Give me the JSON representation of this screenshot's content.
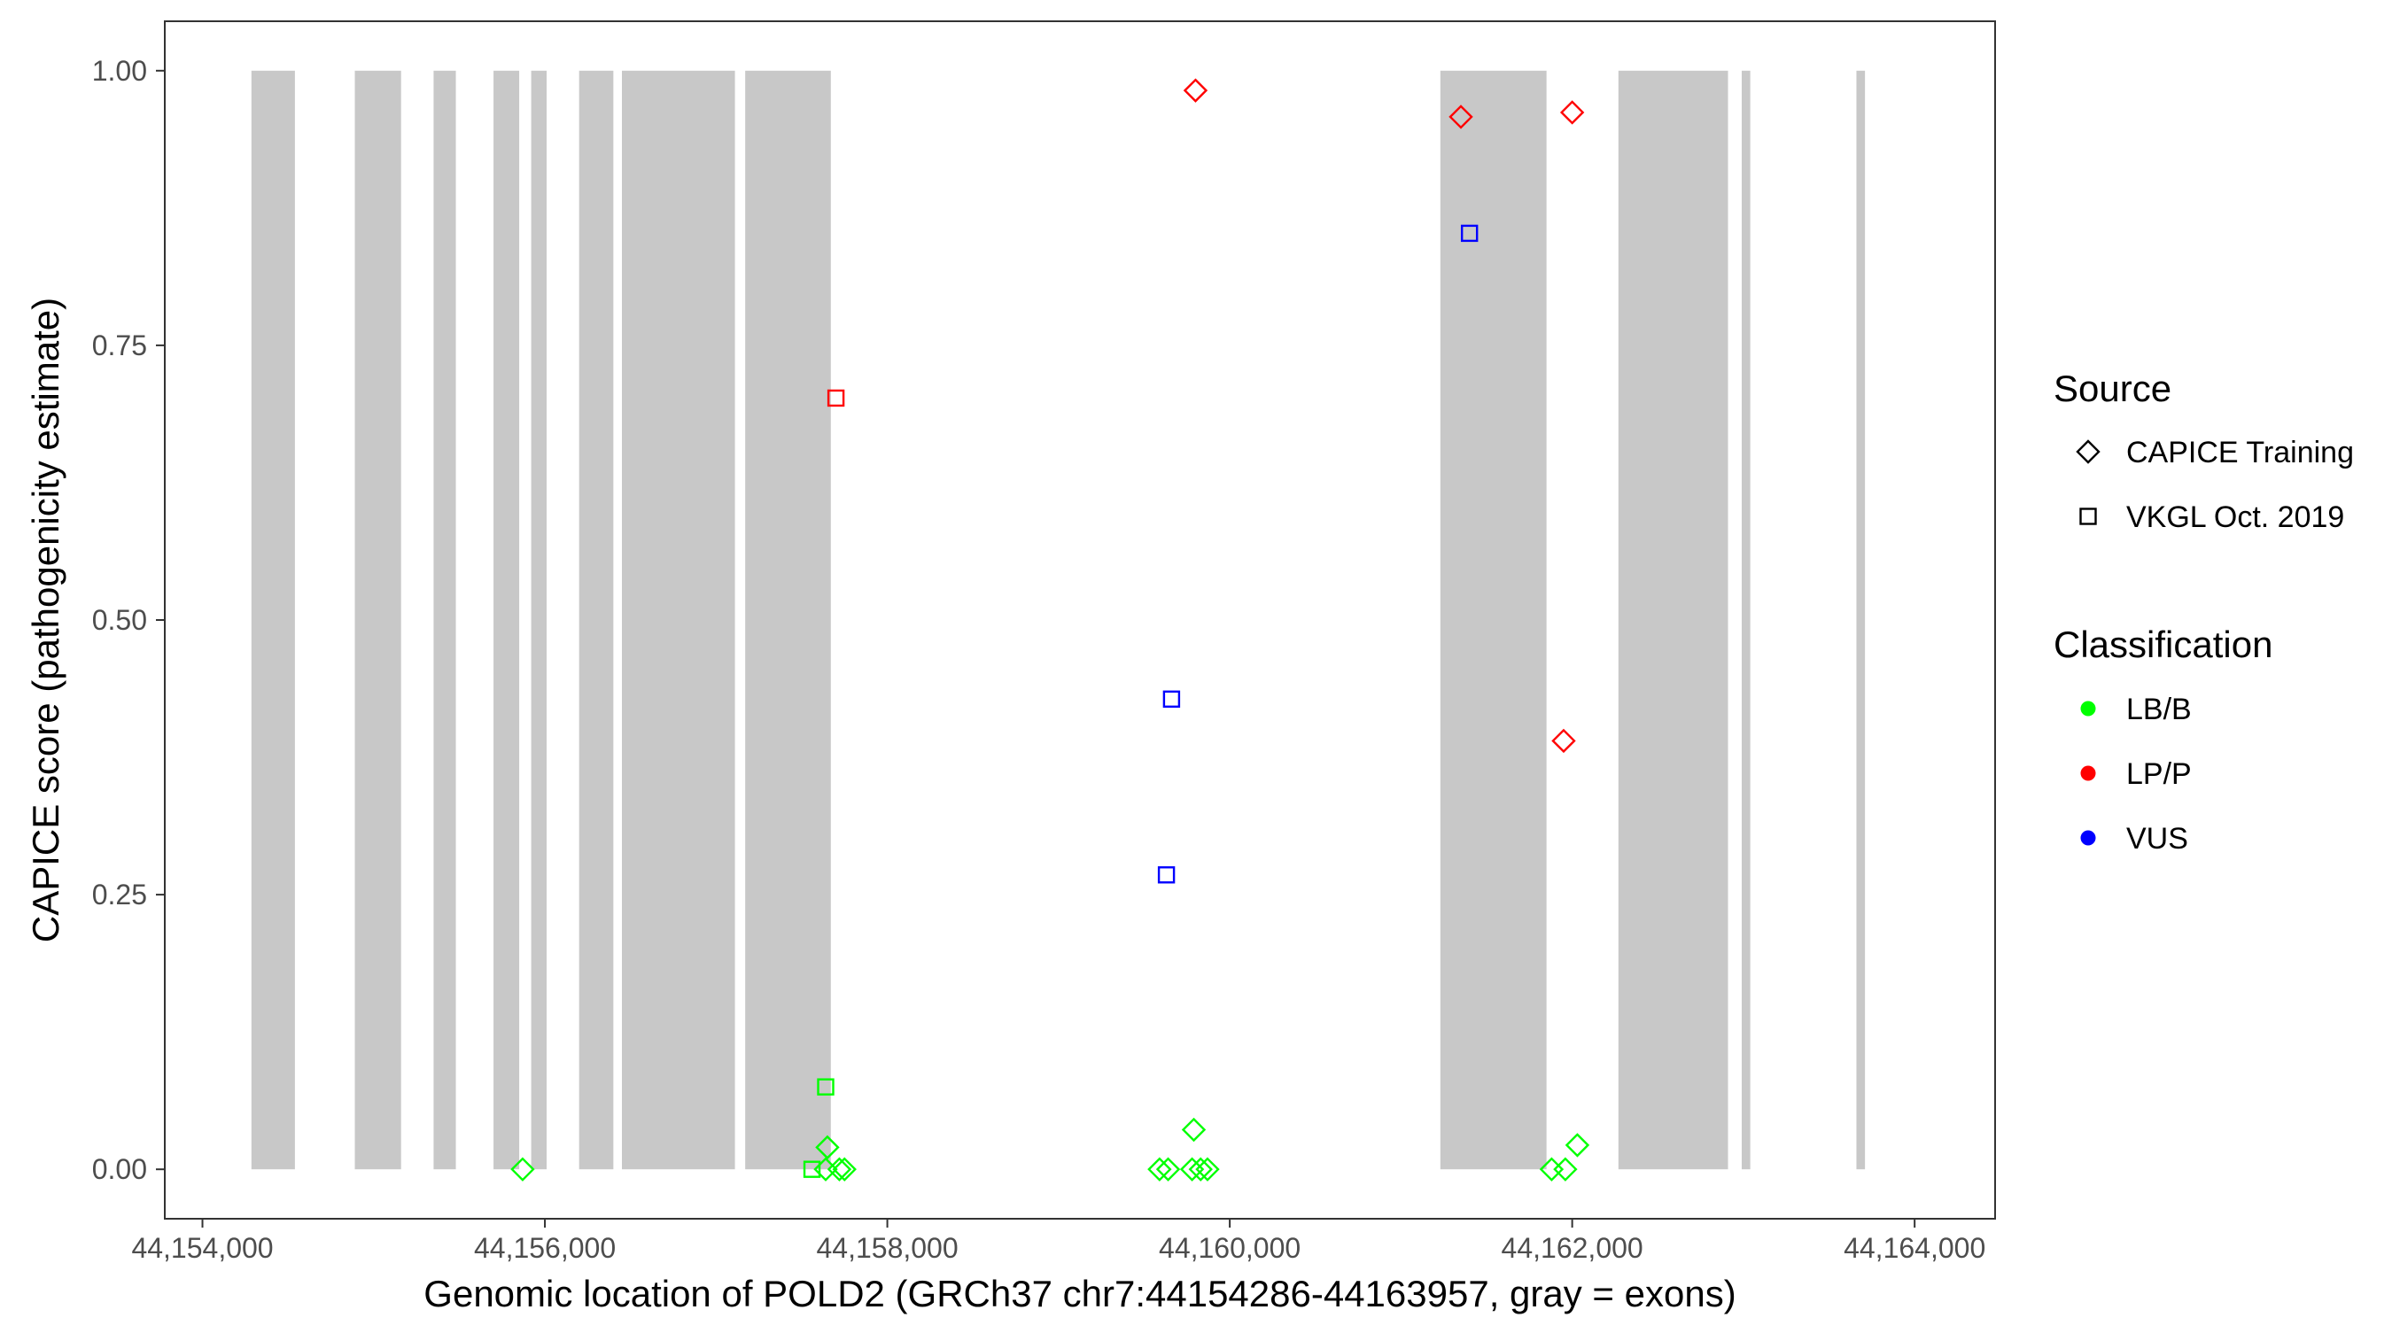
{
  "chart_data": {
    "type": "scatter",
    "xlabel": "Genomic location of POLD2 (GRCh37 chr7:44154286-44163957, gray = exons)",
    "ylabel": "CAPICE score (pathogenicity estimate)",
    "xlim": [
      44153780,
      44164470
    ],
    "ylim": [
      -0.045,
      1.045
    ],
    "x_ticks": [
      44154000,
      44156000,
      44158000,
      44160000,
      44162000,
      44164000
    ],
    "x_tick_labels": [
      "44,154,000",
      "44,156,000",
      "44,158,000",
      "44,160,000",
      "44,162,000",
      "44,164,000"
    ],
    "y_ticks": [
      0,
      0.25,
      0.5,
      0.75,
      1.0
    ],
    "y_tick_labels": [
      "0.00",
      "0.25",
      "0.50",
      "0.75",
      "1.00"
    ],
    "grid": false,
    "exons": [
      [
        44154286,
        44154540
      ],
      [
        44154890,
        44155160
      ],
      [
        44155350,
        44155480
      ],
      [
        44155700,
        44155850
      ],
      [
        44155920,
        44156010
      ],
      [
        44156200,
        44156400
      ],
      [
        44156450,
        44157110
      ],
      [
        44157170,
        44157670
      ],
      [
        44161230,
        44161850
      ],
      [
        44162270,
        44162910
      ],
      [
        44162990,
        44163040
      ],
      [
        44163660,
        44163710
      ]
    ],
    "legend_position": "right",
    "legends": [
      {
        "title": "Source",
        "items": [
          {
            "label": "CAPICE Training",
            "shape": "diamond"
          },
          {
            "label": "VKGL Oct. 2019",
            "shape": "square"
          }
        ]
      },
      {
        "title": "Classification",
        "items": [
          {
            "label": "LB/B",
            "color": "#00ff00"
          },
          {
            "label": "LP/P",
            "color": "#ff0000"
          },
          {
            "label": "VUS",
            "color": "#0000ff"
          }
        ]
      }
    ],
    "points": [
      {
        "x": 44159800,
        "y": 0.982,
        "source": "CAPICE Training",
        "classification": "LP/P"
      },
      {
        "x": 44161350,
        "y": 0.958,
        "source": "CAPICE Training",
        "classification": "LP/P"
      },
      {
        "x": 44162000,
        "y": 0.962,
        "source": "CAPICE Training",
        "classification": "LP/P"
      },
      {
        "x": 44161950,
        "y": 0.39,
        "source": "CAPICE Training",
        "classification": "LP/P"
      },
      {
        "x": 44157700,
        "y": 0.702,
        "source": "VKGL Oct. 2019",
        "classification": "LP/P"
      },
      {
        "x": 44161400,
        "y": 0.852,
        "source": "VKGL Oct. 2019",
        "classification": "VUS"
      },
      {
        "x": 44159660,
        "y": 0.428,
        "source": "VKGL Oct. 2019",
        "classification": "VUS"
      },
      {
        "x": 44159630,
        "y": 0.268,
        "source": "VKGL Oct. 2019",
        "classification": "VUS"
      },
      {
        "x": 44157640,
        "y": 0.075,
        "source": "VKGL Oct. 2019",
        "classification": "LB/B"
      },
      {
        "x": 44157560,
        "y": 0.0,
        "source": "VKGL Oct. 2019",
        "classification": "LB/B"
      },
      {
        "x": 44155870,
        "y": 0.0,
        "source": "CAPICE Training",
        "classification": "LB/B"
      },
      {
        "x": 44157650,
        "y": 0.02,
        "source": "CAPICE Training",
        "classification": "LB/B"
      },
      {
        "x": 44157640,
        "y": 0.0,
        "source": "CAPICE Training",
        "classification": "LB/B"
      },
      {
        "x": 44157720,
        "y": 0.0,
        "source": "CAPICE Training",
        "classification": "LB/B"
      },
      {
        "x": 44157750,
        "y": 0.0,
        "source": "CAPICE Training",
        "classification": "LB/B"
      },
      {
        "x": 44159590,
        "y": 0.0,
        "source": "CAPICE Training",
        "classification": "LB/B"
      },
      {
        "x": 44159640,
        "y": 0.0,
        "source": "CAPICE Training",
        "classification": "LB/B"
      },
      {
        "x": 44159790,
        "y": 0.036,
        "source": "CAPICE Training",
        "classification": "LB/B"
      },
      {
        "x": 44159780,
        "y": 0.0,
        "source": "CAPICE Training",
        "classification": "LB/B"
      },
      {
        "x": 44159830,
        "y": 0.0,
        "source": "CAPICE Training",
        "classification": "LB/B"
      },
      {
        "x": 44159870,
        "y": 0.0,
        "source": "CAPICE Training",
        "classification": "LB/B"
      },
      {
        "x": 44161880,
        "y": 0.0,
        "source": "CAPICE Training",
        "classification": "LB/B"
      },
      {
        "x": 44161960,
        "y": 0.0,
        "source": "CAPICE Training",
        "classification": "LB/B"
      },
      {
        "x": 44162030,
        "y": 0.022,
        "source": "CAPICE Training",
        "classification": "LB/B"
      }
    ]
  }
}
